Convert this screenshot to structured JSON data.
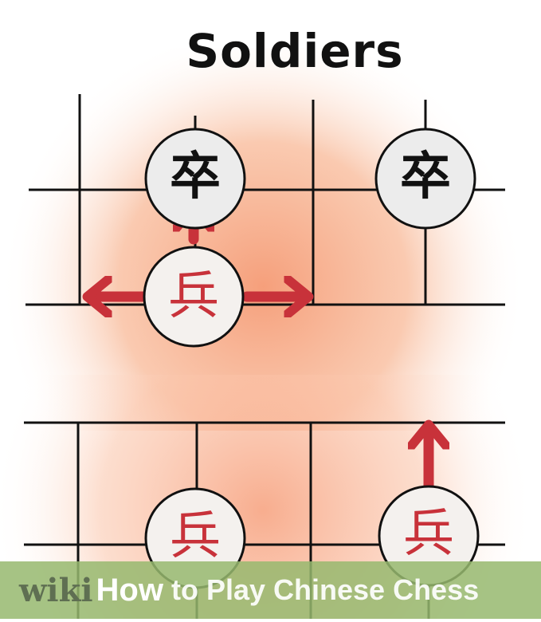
{
  "title": "Soldiers",
  "pieces": {
    "black_soldier_char": "卒",
    "red_soldier_char": "兵"
  },
  "colors": {
    "board_line": "#111111",
    "red_piece": "#c8323a",
    "arrow": "#c8323a",
    "black_piece": "#111111",
    "glow": "#f59a74"
  },
  "banner": {
    "brand_wiki": "wiki",
    "brand_how": "How",
    "article_title": "to Play Chinese Chess"
  }
}
